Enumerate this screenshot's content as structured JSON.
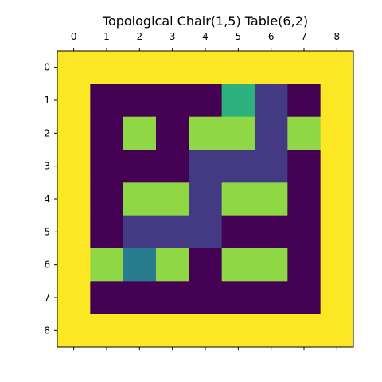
{
  "chart_data": {
    "type": "heatmap",
    "title": "Topological Chair(1,5) Table(6,2)",
    "x_ticks": [
      "0",
      "1",
      "2",
      "3",
      "4",
      "5",
      "6",
      "7",
      "8"
    ],
    "y_ticks": [
      "0",
      "1",
      "2",
      "3",
      "4",
      "5",
      "6",
      "7",
      "8"
    ],
    "x_axis_position": "top",
    "colormap": "viridis",
    "color_scale": [
      0,
      5
    ],
    "grid": false,
    "values": [
      [
        5,
        5,
        5,
        5,
        5,
        5,
        5,
        5,
        5
      ],
      [
        5,
        0,
        0,
        0,
        0,
        3,
        1,
        0,
        5
      ],
      [
        5,
        0,
        4,
        0,
        4,
        4,
        1,
        4,
        5
      ],
      [
        5,
        0,
        0,
        0,
        1,
        1,
        1,
        0,
        5
      ],
      [
        5,
        0,
        4,
        4,
        1,
        4,
        4,
        0,
        5
      ],
      [
        5,
        0,
        1,
        1,
        1,
        0,
        0,
        0,
        5
      ],
      [
        5,
        4,
        2,
        4,
        0,
        4,
        4,
        0,
        5
      ],
      [
        5,
        0,
        0,
        0,
        0,
        0,
        0,
        0,
        5
      ],
      [
        5,
        5,
        5,
        5,
        5,
        5,
        5,
        5,
        5
      ]
    ],
    "value_colors": {
      "0": "#440154",
      "1": "#443983",
      "2": "#287c8e",
      "3": "#2db27d",
      "4": "#8fd744",
      "5": "#fde725"
    }
  }
}
